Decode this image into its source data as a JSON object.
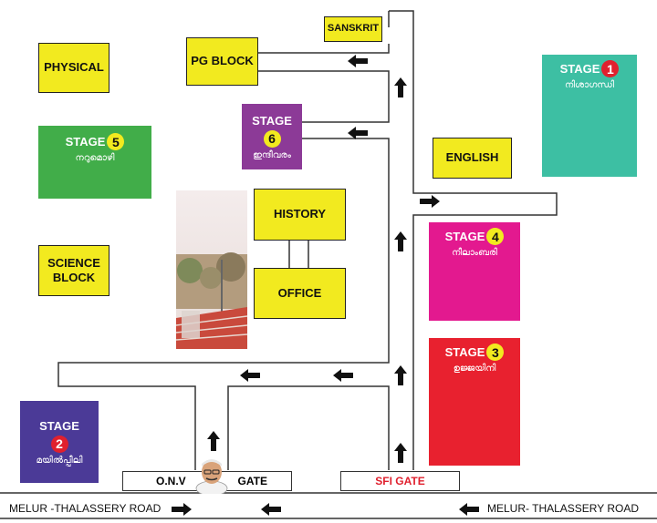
{
  "blocks": {
    "sanskrit": "SANSKRIT",
    "pg_block": "PG BLOCK",
    "physical": "PHYSICAL",
    "english": "ENGLISH",
    "history": "HISTORY",
    "office": "OFFICE",
    "science_line1": "SCIENCE",
    "science_line2": "BLOCK"
  },
  "stages": [
    {
      "label": "STAGE",
      "num": "1",
      "name": "നിശാഗന്ധി",
      "color": "#3dbfa3",
      "circle": "#e0202e"
    },
    {
      "label": "STAGE",
      "num": "2",
      "name": "മയിൽപ്പീലി",
      "color": "#4b3a97",
      "circle": "#e0202e"
    },
    {
      "label": "STAGE",
      "num": "3",
      "name": "ഉജ്ജയിനി",
      "color": "#e8212f",
      "circle": "#f2ea1f"
    },
    {
      "label": "STAGE",
      "num": "4",
      "name": "നീലാംബരി",
      "color": "#e3198f",
      "circle": "#f2ea1f"
    },
    {
      "label": "STAGE",
      "num": "5",
      "name": "നറുമൊഴി",
      "color": "#41ad49",
      "circle": "#f2ea1f"
    },
    {
      "label": "STAGE",
      "num": "6",
      "name": "ഇന്ദീവരം",
      "color": "#8c3a97",
      "circle": "#f2ea1f"
    }
  ],
  "gates": {
    "onv_left": "O.N.V",
    "onv_right": "GATE",
    "sfi": "SFI GATE"
  },
  "roads": {
    "left": "MELUR -THALASSERY ROAD",
    "right": "MELUR- THALASSERY ROAD"
  },
  "colors": {
    "yellow": "#f2ea1f",
    "sfi_text": "#e0202e"
  },
  "icons": {
    "arrow": "arrow-icon",
    "photo": "amphitheatre-photo",
    "portrait": "onv-portrait"
  }
}
